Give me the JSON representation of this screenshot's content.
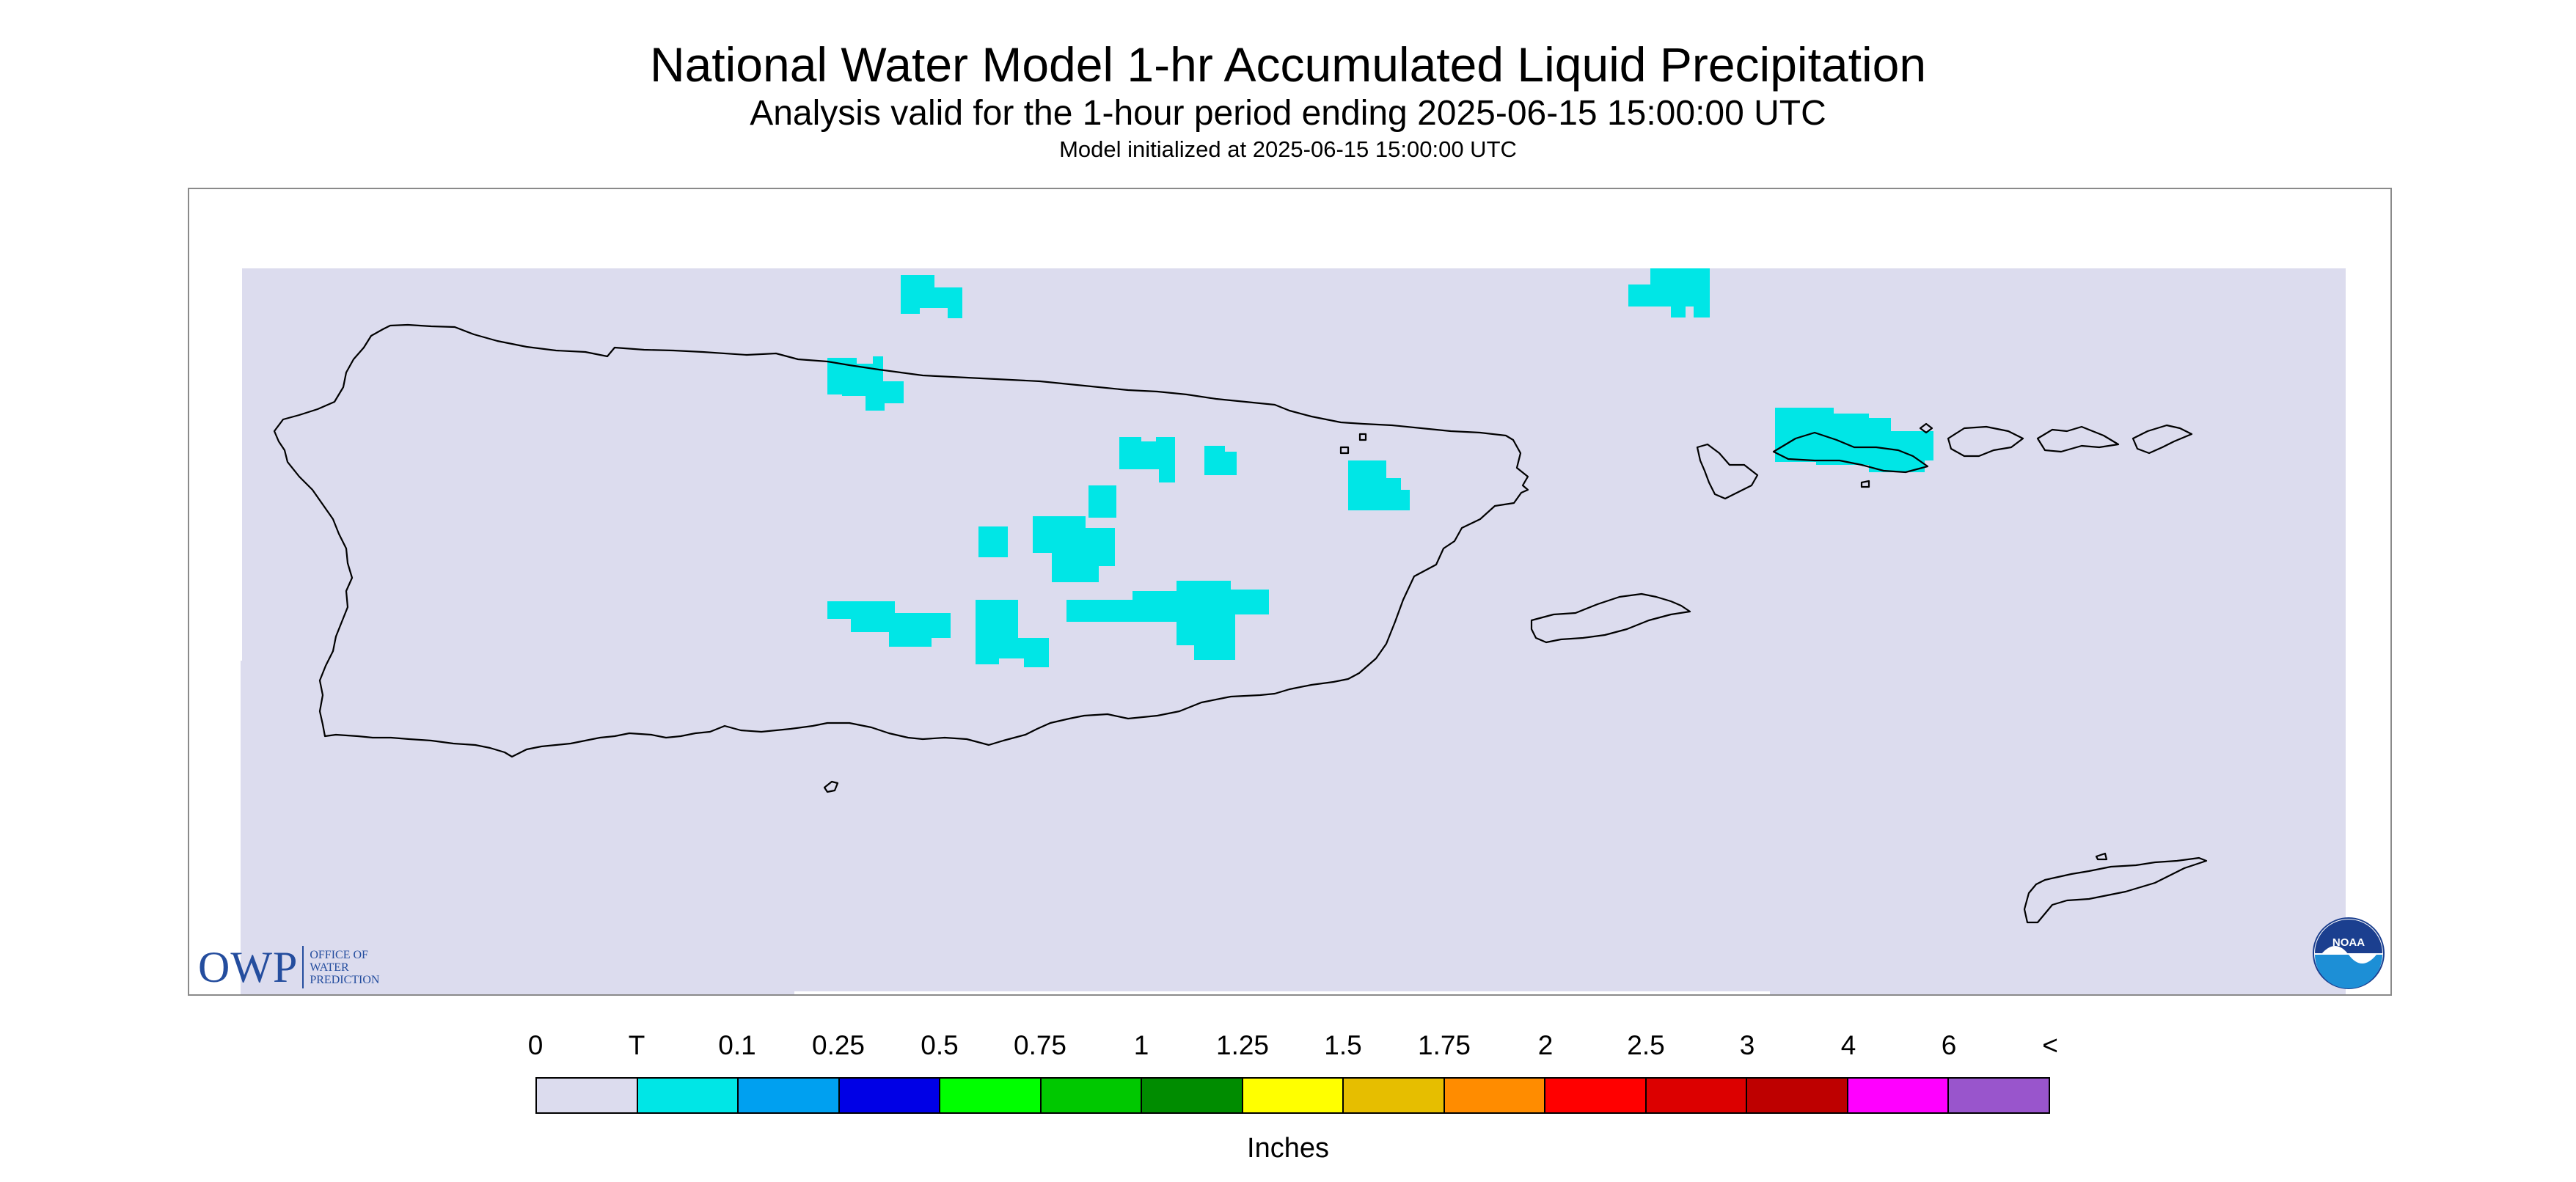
{
  "header": {
    "title": "National Water Model 1-hr Accumulated Liquid Precipitation",
    "subtitle": "Analysis valid for the 1-hour period ending 2025-06-15 15:00:00 UTC",
    "init_line": "Model initialized at 2025-06-15 15:00:00 UTC"
  },
  "map": {
    "background_color": "#dcdcee",
    "precip_trace_color": "#00e6e6",
    "coastline_color": "#000000"
  },
  "logos": {
    "owp": {
      "letters": "OWP",
      "words": [
        "Office of",
        "Water",
        "Prediction"
      ]
    },
    "noaa": {
      "text": "NOAA"
    }
  },
  "legend": {
    "tick_labels": [
      "0",
      "T",
      "0.1",
      "0.25",
      "0.5",
      "0.75",
      "1",
      "1.25",
      "1.5",
      "1.75",
      "2",
      "2.5",
      "3",
      "4",
      "6",
      "<"
    ],
    "colors": [
      "#dcdcee",
      "#00e6e6",
      "#00a0f0",
      "#0000e6",
      "#00ff00",
      "#00c800",
      "#008c00",
      "#ffff00",
      "#e6be00",
      "#ff8c00",
      "#ff0000",
      "#dc0000",
      "#be0000",
      "#ff00ff",
      "#9955cc"
    ],
    "units": "Inches"
  }
}
